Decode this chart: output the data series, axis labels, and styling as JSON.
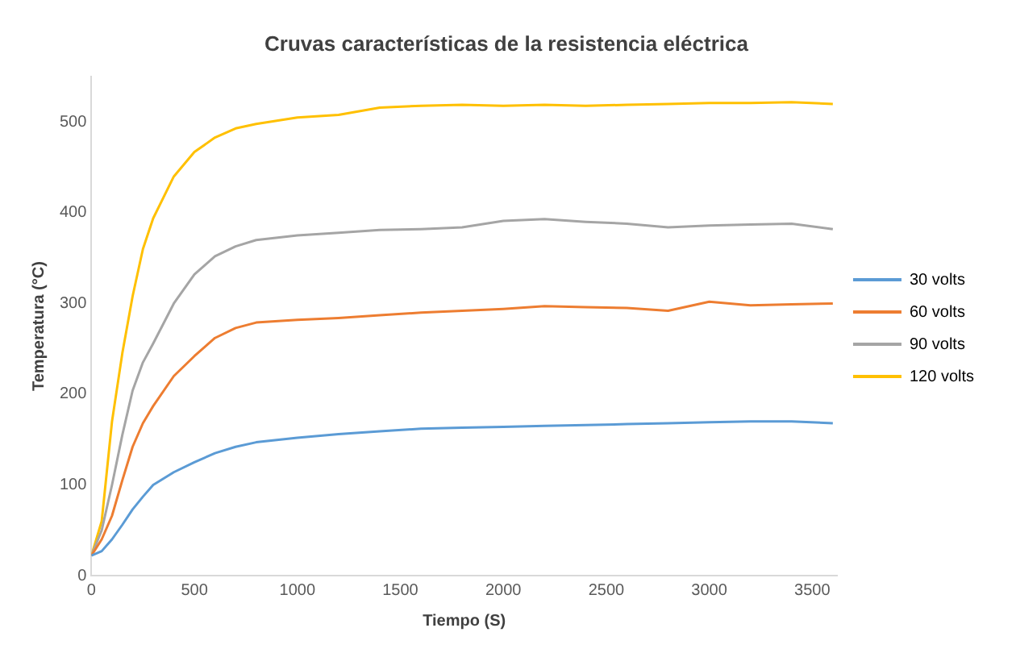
{
  "chart_data": {
    "type": "line",
    "title": "Cruvas características de la resistencia eléctrica",
    "xlabel": "Tiempo (S)",
    "ylabel": "Temperatura (°C)",
    "x": [
      0,
      50,
      100,
      150,
      200,
      250,
      300,
      400,
      500,
      600,
      700,
      800,
      1000,
      1200,
      1400,
      1600,
      1800,
      2000,
      2200,
      2400,
      2600,
      2800,
      3000,
      3200,
      3400,
      3600
    ],
    "xlim": [
      0,
      3620
    ],
    "xticks": [
      0,
      500,
      1000,
      1500,
      2000,
      2500,
      3000,
      3500
    ],
    "ylim": [
      0,
      550
    ],
    "yticks": [
      0,
      100,
      200,
      300,
      400,
      500
    ],
    "grid": false,
    "legend": "right",
    "marker": "none",
    "line_style": "solid",
    "series": [
      {
        "name": "30 volts",
        "color": "#5b9bd5",
        "values": [
          22,
          27,
          40,
          56,
          73,
          87,
          100,
          114,
          125,
          135,
          142,
          147,
          152,
          156,
          159,
          162,
          163,
          164,
          165,
          166,
          167,
          168,
          169,
          170,
          170,
          168
        ]
      },
      {
        "name": "60 volts",
        "color": "#ed7d31",
        "values": [
          22,
          40,
          66,
          105,
          142,
          168,
          187,
          220,
          242,
          262,
          273,
          279,
          282,
          284,
          287,
          290,
          292,
          294,
          297,
          296,
          295,
          292,
          302,
          298,
          299,
          300
        ]
      },
      {
        "name": "90 volts",
        "color": "#a5a5a5",
        "values": [
          22,
          50,
          100,
          155,
          204,
          235,
          256,
          300,
          332,
          352,
          363,
          370,
          375,
          378,
          381,
          382,
          384,
          391,
          393,
          390,
          388,
          384,
          386,
          387,
          388,
          382
        ]
      },
      {
        "name": "120 volts",
        "color": "#ffc000",
        "values": [
          22,
          60,
          170,
          245,
          308,
          360,
          394,
          440,
          467,
          483,
          493,
          498,
          505,
          508,
          516,
          518,
          519,
          518,
          519,
          518,
          519,
          520,
          521,
          521,
          522,
          520
        ]
      }
    ]
  }
}
